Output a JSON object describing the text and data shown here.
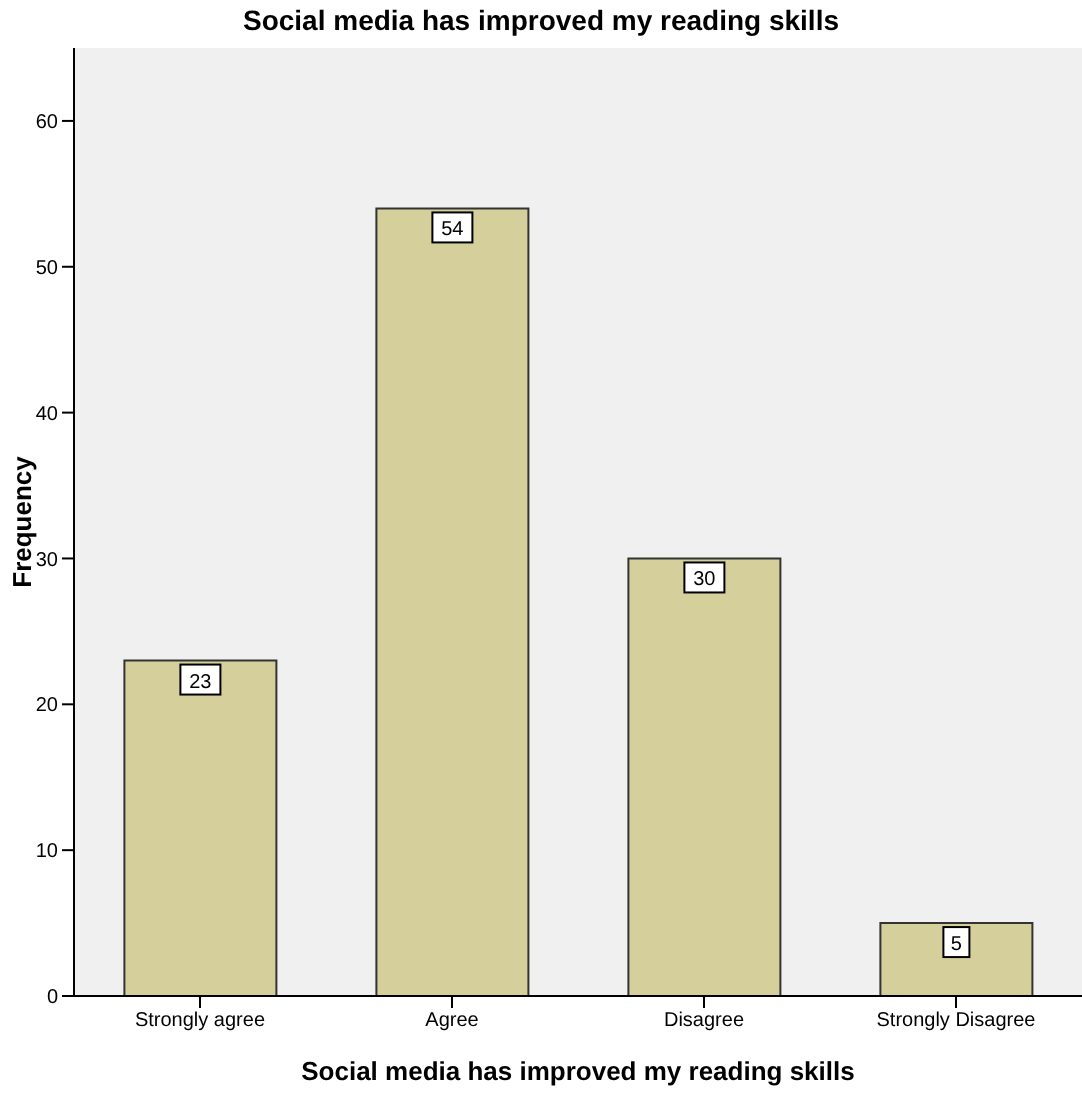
{
  "chart_data": {
    "type": "bar",
    "title": "Social media has improved my reading skills",
    "xlabel": "Social media has improved my reading skills",
    "ylabel": "Frequency",
    "categories": [
      "Strongly agree",
      "Agree",
      "Disagree",
      "Strongly Disagree"
    ],
    "values": [
      23,
      54,
      30,
      5
    ],
    "color": "#d5d09b",
    "ylim": [
      0,
      65
    ],
    "yticks": [
      0,
      10,
      20,
      30,
      40,
      50,
      60
    ],
    "grid": false,
    "data_labels": true
  }
}
